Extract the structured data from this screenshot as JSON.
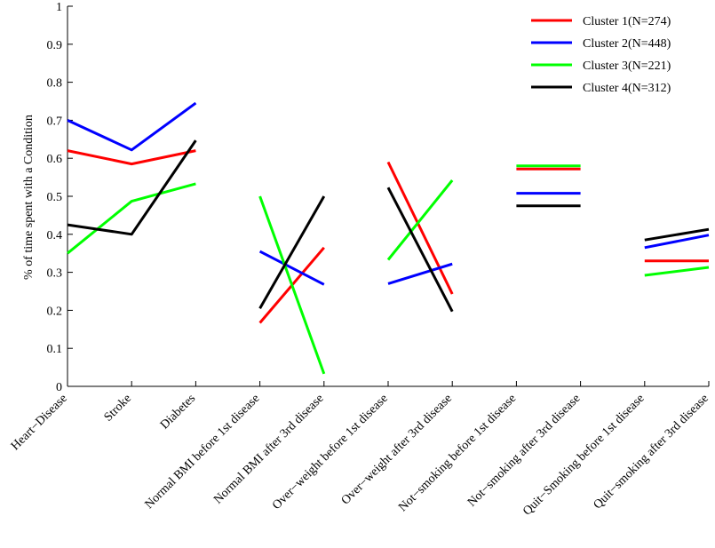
{
  "chart_data": {
    "type": "line",
    "ylabel": "% of time spent with a Condition",
    "xlabel": "",
    "ylim": [
      0,
      1
    ],
    "yticks": [
      "0",
      "0.1",
      "0.2",
      "0.3",
      "0.4",
      "0.5",
      "0.6",
      "0.7",
      "0.8",
      "0.9",
      "1"
    ],
    "categories": [
      "Heart−Disease",
      "Stroke",
      "Diabetes",
      "Normal BMI before 1st disease",
      "Normal BMI after 3rd disease",
      "Over−weight before 1st disease",
      "Over−weight after 3rd disease",
      "Not−smoking before 1st disease",
      "Not−smoking after 3rd disease",
      "Quit−Smoking before 1st disease",
      "Quit−smoking after 3rd disease"
    ],
    "segments": [
      [
        0,
        1,
        2
      ],
      [
        3,
        4
      ],
      [
        5,
        6
      ],
      [
        7,
        8
      ],
      [
        9,
        10
      ]
    ],
    "legend_position": "top-right",
    "grid": false,
    "series": [
      {
        "name": "Cluster 1(N=274)",
        "color": "#ff0000",
        "values": [
          0.62,
          0.585,
          0.62,
          0.167,
          0.365,
          0.59,
          0.243,
          0.572,
          0.572,
          0.33,
          0.33
        ]
      },
      {
        "name": "Cluster 2(N=448)",
        "color": "#0000ff",
        "values": [
          0.7,
          0.622,
          0.745,
          0.355,
          0.268,
          0.27,
          0.322,
          0.508,
          0.508,
          0.365,
          0.398
        ]
      },
      {
        "name": "Cluster 3(N=221)",
        "color": "#00ff00",
        "values": [
          0.35,
          0.487,
          0.533,
          0.5,
          0.033,
          0.333,
          0.542,
          0.58,
          0.58,
          0.292,
          0.313
        ]
      },
      {
        "name": "Cluster 4(N=312)",
        "color": "#000000",
        "values": [
          0.425,
          0.4,
          0.647,
          0.205,
          0.5,
          0.523,
          0.197,
          0.475,
          0.475,
          0.385,
          0.413
        ]
      }
    ]
  }
}
